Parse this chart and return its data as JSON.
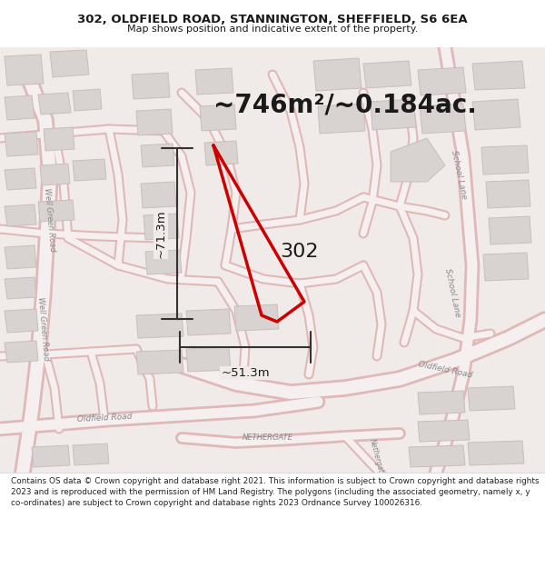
{
  "title_line1": "302, OLDFIELD ROAD, STANNINGTON, SHEFFIELD, S6 6EA",
  "title_line2": "Map shows position and indicative extent of the property.",
  "area_text": "~746m²/~0.184ac.",
  "property_label": "302",
  "dim_vertical": "~71.3m",
  "dim_horizontal": "~51.3m",
  "footer_text": "Contains OS data © Crown copyright and database right 2021. This information is subject to Crown copyright and database rights 2023 and is reproduced with the permission of HM Land Registry. The polygons (including the associated geometry, namely x, y co-ordinates) are subject to Crown copyright and database rights 2023 Ordnance Survey 100026316.",
  "bg_color": "#ffffff",
  "map_bg": "#f0ebe8",
  "road_color_outer": "#e0b8b8",
  "road_color_inner": "#f5efef",
  "building_face": "#d8d2d0",
  "building_edge": "#c8bebe",
  "property_red": "#cc0000",
  "dim_color": "#333333",
  "text_color": "#1a1a1a",
  "road_text_color": "#888888",
  "footer_color": "#222222"
}
